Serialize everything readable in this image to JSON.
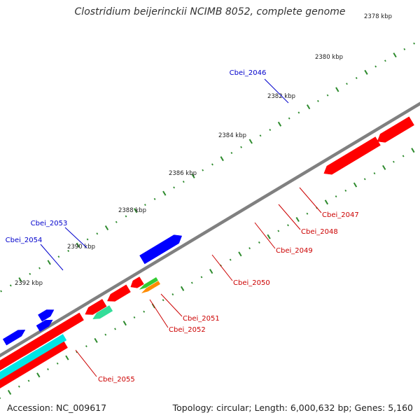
{
  "title": "Clostridium beijerinckii NCIMB 8052, complete genome",
  "footer": {
    "accession": "Accession: NC_009617",
    "summary": "Topology: circular; Length: 6,000,632 bp; Genes: 5,160"
  },
  "colors": {
    "forward_cds": "#0000ff",
    "reverse_cds": "#ff0000",
    "backbone": "#808080",
    "tick": "#2e8b2e",
    "forward_label": "#0000cc",
    "reverse_label": "#cc0000",
    "cds_green": "#33cc33",
    "cds_orange": "#ff8c00",
    "cds_seagreen": "#33dd99",
    "cds_grey": "#c0c0c0",
    "cds_cyan": "#00e5e5"
  },
  "scale_labels": [
    "2378 kbp",
    "2380 kbp",
    "2382 kbp",
    "2384 kbp",
    "2386 kbp",
    "2388 kbp",
    "2390 kbp",
    "2392 kbp"
  ],
  "features": [
    {
      "name": "Cbei_2046",
      "strand": "+",
      "color_key": "forward_cds"
    },
    {
      "name": "Cbei_2047",
      "strand": "-",
      "color_key": "cds_orange"
    },
    {
      "name": "Cbei_2048",
      "strand": "-",
      "color_key": "cds_green"
    },
    {
      "name": "Cbei_2049",
      "strand": "-",
      "color_key": "cds_seagreen"
    },
    {
      "name": "Cbei_2050",
      "strand": "-",
      "color_key": "reverse_cds"
    },
    {
      "name": "Cbei_2051",
      "strand": "-",
      "color_key": "reverse_cds"
    },
    {
      "name": "Cbei_2052",
      "strand": "-",
      "color_key": "reverse_cds"
    },
    {
      "name": "Cbei_2053",
      "strand": "+",
      "color_key": "forward_cds"
    },
    {
      "name": "Cbei_2054",
      "strand": "+",
      "color_key": "forward_cds"
    },
    {
      "name": "Cbei_2055",
      "strand": "-",
      "color_key": "cds_grey"
    }
  ]
}
